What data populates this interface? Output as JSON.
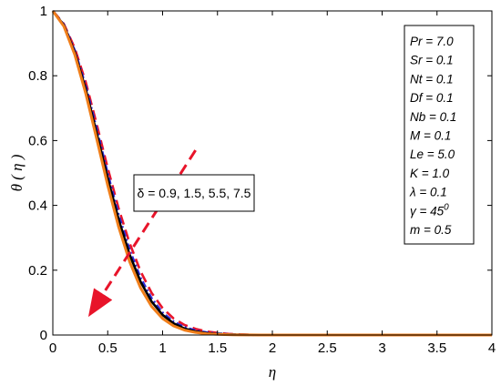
{
  "chart_data": {
    "type": "line",
    "xlabel": "η",
    "ylabel": "θ ( η )",
    "xlim": [
      0,
      4
    ],
    "ylim": [
      0,
      1
    ],
    "x_ticks": [
      "0",
      "0.5",
      "1",
      "1.5",
      "2",
      "2.5",
      "3",
      "3.5",
      "4"
    ],
    "y_ticks": [
      "0",
      "0.2",
      "0.4",
      "0.6",
      "0.8",
      "1"
    ],
    "grid": false,
    "annotation": {
      "text": "δ = 0.9, 1.5, 5.5, 7.5",
      "arrow_from": [
        1.3,
        0.57
      ],
      "arrow_to": [
        0.35,
        0.07
      ]
    },
    "params": [
      "Pr = 7.0",
      "Sr = 0.1",
      "Nt = 0.1",
      "Df = 0.1",
      "Nb = 0.1",
      "M = 0.1",
      "Le = 5.0",
      "K = 1.0",
      "λ = 0.1",
      "γ = 45",
      "m = 0.5"
    ],
    "params_superscript": {
      "index": 9,
      "text": "0"
    },
    "x": [
      0,
      0.1,
      0.2,
      0.3,
      0.4,
      0.5,
      0.6,
      0.7,
      0.8,
      0.9,
      1.0,
      1.1,
      1.2,
      1.3,
      1.4,
      1.5,
      1.6,
      1.7,
      1.8,
      1.9,
      2.0,
      2.5,
      3.0,
      3.5,
      4.0
    ],
    "series": [
      {
        "color": "#e8142a",
        "style": "dash",
        "values": [
          1.0,
          0.96,
          0.885,
          0.78,
          0.65,
          0.515,
          0.39,
          0.283,
          0.196,
          0.13,
          0.083,
          0.051,
          0.031,
          0.019,
          0.011,
          0.0065,
          0.0035,
          0.0018,
          0.0009,
          0.0004,
          0.0002,
          0,
          0,
          0,
          0
        ]
      },
      {
        "color": "#2a2ad8",
        "style": "dashdot",
        "values": [
          1.0,
          0.958,
          0.878,
          0.768,
          0.635,
          0.498,
          0.37,
          0.262,
          0.176,
          0.113,
          0.069,
          0.041,
          0.024,
          0.014,
          0.008,
          0.0045,
          0.0024,
          0.0012,
          0.0006,
          0.0003,
          0.0001,
          0,
          0,
          0,
          0
        ]
      },
      {
        "color": "#000000",
        "style": "solid",
        "values": [
          1.0,
          0.956,
          0.872,
          0.758,
          0.622,
          0.484,
          0.356,
          0.248,
          0.164,
          0.103,
          0.062,
          0.036,
          0.02,
          0.011,
          0.006,
          0.0032,
          0.0016,
          0.0008,
          0.0004,
          0.0002,
          0.0001,
          0,
          0,
          0,
          0
        ]
      },
      {
        "color": "#f07e1a",
        "style": "solid",
        "values": [
          1.0,
          0.953,
          0.865,
          0.745,
          0.605,
          0.462,
          0.333,
          0.226,
          0.145,
          0.088,
          0.051,
          0.028,
          0.015,
          0.008,
          0.004,
          0.002,
          0.001,
          0.0005,
          0.0002,
          0.0001,
          0,
          0,
          0,
          0,
          0
        ]
      }
    ]
  }
}
